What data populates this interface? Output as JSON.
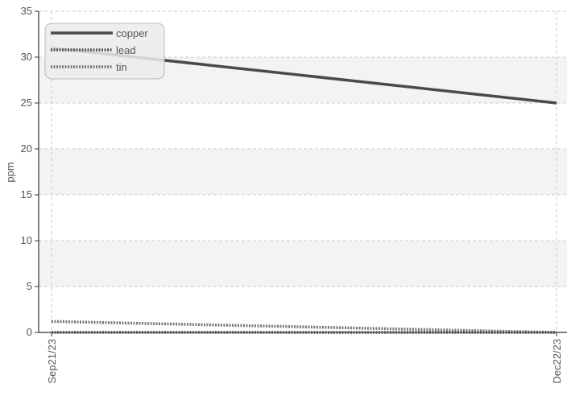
{
  "chart_data": {
    "type": "line",
    "title": "",
    "xlabel": "",
    "ylabel": "ppm",
    "x": [
      "Sep21/23",
      "Dec22/23"
    ],
    "ylim": [
      0,
      35
    ],
    "yticks": [
      0,
      5,
      10,
      15,
      20,
      25,
      30,
      35
    ],
    "grid": true,
    "grid_style": "dashed",
    "background_bands": "alternating light gray",
    "legend_position": "top-left",
    "series": [
      {
        "name": "copper",
        "values": [
          31,
          25
        ],
        "color": "#4a4a4a",
        "style": "solid"
      },
      {
        "name": "lead",
        "values": [
          0,
          0
        ],
        "color": "#555555",
        "style": "dotted"
      },
      {
        "name": "tin",
        "values": [
          1.2,
          0
        ],
        "color": "#777777",
        "style": "dotted"
      }
    ]
  }
}
